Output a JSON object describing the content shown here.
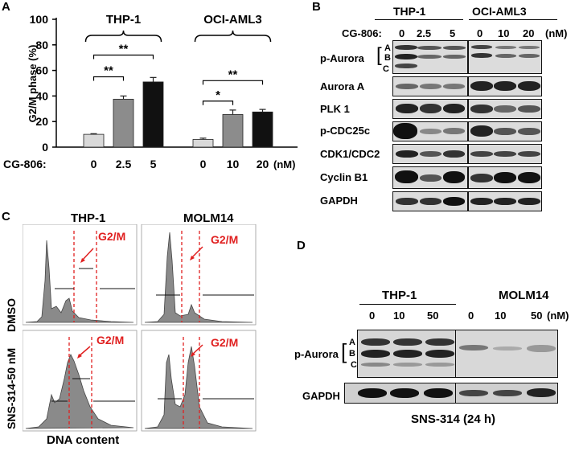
{
  "panels": {
    "A": "A",
    "B": "B",
    "C": "C",
    "D": "D"
  },
  "chart_data": {
    "type": "bar",
    "ylabel": "G2/M phase (%)",
    "ylim": [
      0,
      100
    ],
    "yticks": [
      0,
      20,
      40,
      60,
      80,
      100
    ],
    "xlabel_prefix": "CG-806:",
    "unit": "(nM)",
    "groups": [
      {
        "name": "THP-1",
        "categories": [
          "0",
          "2.5",
          "5"
        ],
        "values": [
          10,
          37.5,
          51
        ],
        "errors": [
          0.5,
          2.5,
          3.5
        ],
        "colors": [
          "#d9d9d9",
          "#8c8c8c",
          "#111111"
        ]
      },
      {
        "name": "OCI-AML3",
        "categories": [
          "0",
          "10",
          "20"
        ],
        "values": [
          6,
          25.5,
          27.5
        ],
        "errors": [
          1,
          3.5,
          2
        ],
        "colors": [
          "#d9d9d9",
          "#8c8c8c",
          "#111111"
        ]
      }
    ],
    "annotations": [
      {
        "group": 0,
        "from": 0,
        "to": 1,
        "text": "**"
      },
      {
        "group": 0,
        "from": 0,
        "to": 2,
        "text": "**"
      },
      {
        "group": 1,
        "from": 0,
        "to": 1,
        "text": "*"
      },
      {
        "group": 1,
        "from": 0,
        "to": 2,
        "text": "**"
      }
    ]
  },
  "panelB": {
    "cells": [
      "THP-1",
      "OCI-AML3"
    ],
    "drug": "CG-806:",
    "doses_left": [
      "0",
      "2.5",
      "5"
    ],
    "doses_right": [
      "0",
      "10",
      "20"
    ],
    "unit": "(nM)",
    "proteins": [
      "p-Aurora",
      "Aurora A",
      "PLK 1",
      "p-CDC25c",
      "CDK1/CDC2",
      "Cyclin B1",
      "GAPDH"
    ],
    "bands": [
      "A",
      "B",
      "C"
    ]
  },
  "panelC": {
    "cells": [
      "THP-1",
      "MOLM14"
    ],
    "rows": [
      "DMSO",
      "SNS-314-50 nM"
    ],
    "gate": "G2/M",
    "xlabel": "DNA content"
  },
  "panelD": {
    "cells": [
      "THP-1",
      "MOLM14"
    ],
    "doses": [
      "0",
      "10",
      "50"
    ],
    "unit": "(nM)",
    "proteins": [
      "p-Aurora",
      "GAPDH"
    ],
    "bands": [
      "A",
      "B",
      "C"
    ],
    "treatment": "SNS-314 (24 h)"
  }
}
